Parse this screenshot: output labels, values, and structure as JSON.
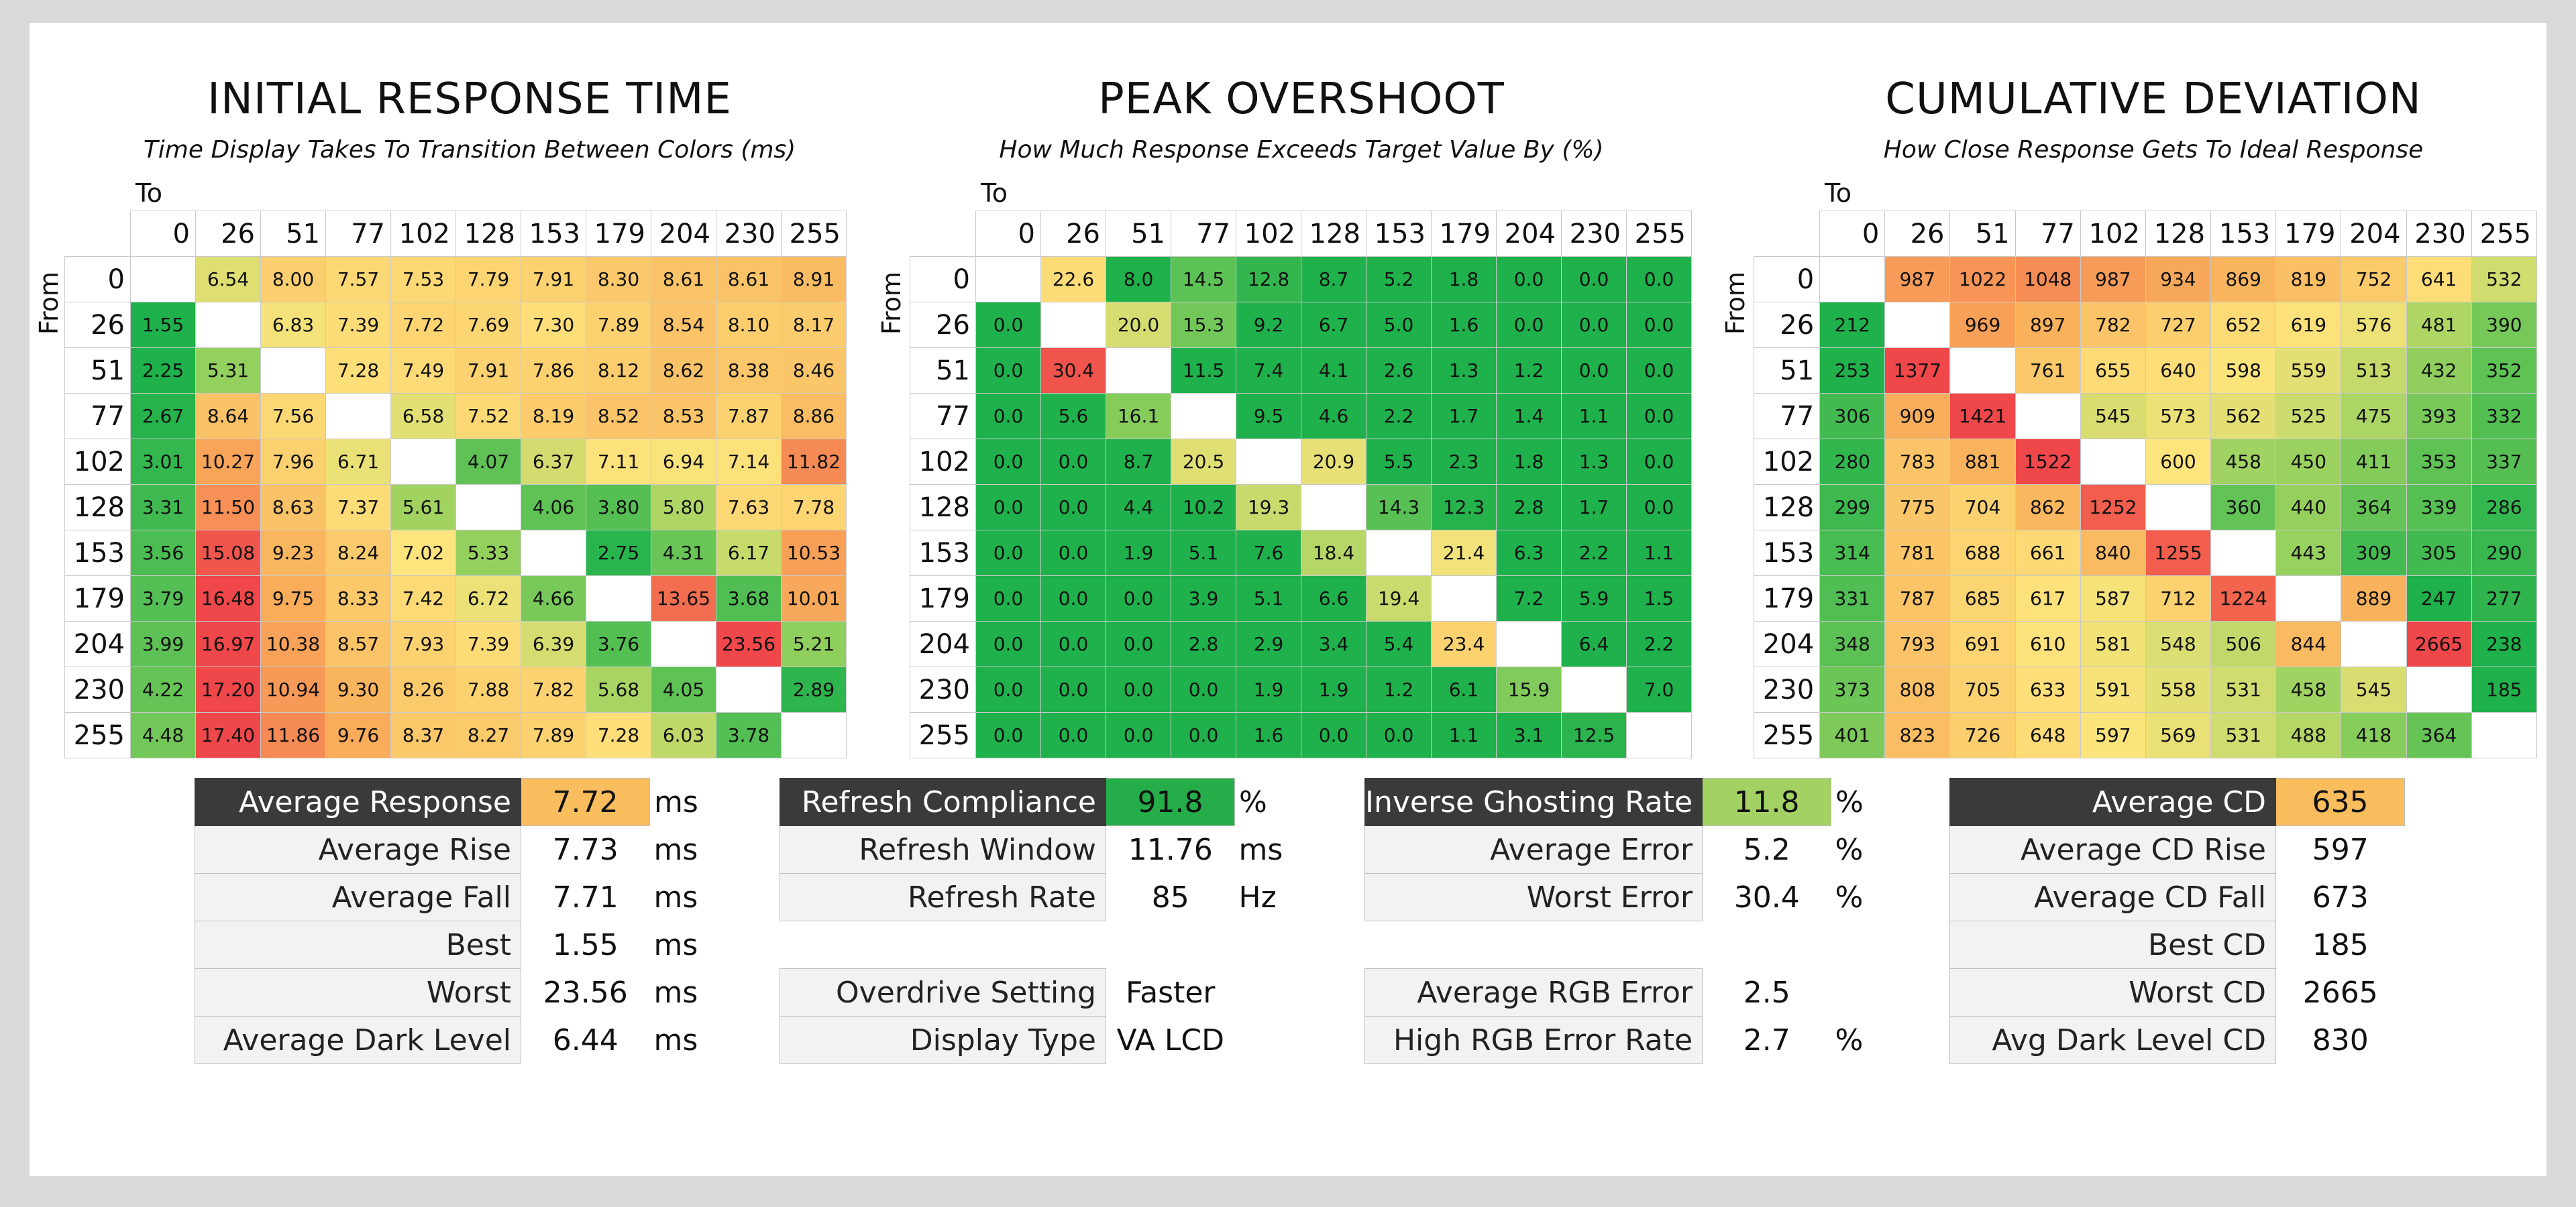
{
  "chart_data": [
    {
      "type": "heatmap",
      "title": "INITIAL RESPONSE TIME",
      "subtitle": "Time Display Takes To Transition Between Colors (ms)",
      "xlabel": "To",
      "ylabel": "From",
      "levels": [
        "0",
        "26",
        "51",
        "77",
        "102",
        "128",
        "153",
        "179",
        "204",
        "230",
        "255"
      ],
      "values": [
        [
          null,
          "6.54",
          "8.00",
          "7.57",
          "7.53",
          "7.79",
          "7.91",
          "8.30",
          "8.61",
          "8.61",
          "8.91"
        ],
        [
          "1.55",
          null,
          "6.83",
          "7.39",
          "7.72",
          "7.69",
          "7.30",
          "7.89",
          "8.54",
          "8.10",
          "8.17"
        ],
        [
          "2.25",
          "5.31",
          null,
          "7.28",
          "7.49",
          "7.91",
          "7.86",
          "8.12",
          "8.62",
          "8.38",
          "8.46"
        ],
        [
          "2.67",
          "8.64",
          "7.56",
          null,
          "6.58",
          "7.52",
          "8.19",
          "8.52",
          "8.53",
          "7.87",
          "8.86"
        ],
        [
          "3.01",
          "10.27",
          "7.96",
          "6.71",
          null,
          "4.07",
          "6.37",
          "7.11",
          "6.94",
          "7.14",
          "11.82"
        ],
        [
          "3.31",
          "11.50",
          "8.63",
          "7.37",
          "5.61",
          null,
          "4.06",
          "3.80",
          "5.80",
          "7.63",
          "7.78"
        ],
        [
          "3.56",
          "15.08",
          "9.23",
          "8.24",
          "7.02",
          "5.33",
          null,
          "2.75",
          "4.31",
          "6.17",
          "10.53"
        ],
        [
          "3.79",
          "16.48",
          "9.75",
          "8.33",
          "7.42",
          "6.72",
          "4.66",
          null,
          "13.65",
          "3.68",
          "10.01"
        ],
        [
          "3.99",
          "16.97",
          "10.38",
          "8.57",
          "7.93",
          "7.39",
          "6.39",
          "3.76",
          null,
          "23.56",
          "5.21"
        ],
        [
          "4.22",
          "17.20",
          "10.94",
          "9.30",
          "8.26",
          "7.88",
          "7.82",
          "5.68",
          "4.05",
          null,
          "2.89"
        ],
        [
          "4.48",
          "17.40",
          "11.86",
          "9.76",
          "8.37",
          "8.27",
          "7.89",
          "7.28",
          "6.03",
          "3.78",
          null
        ]
      ]
    },
    {
      "type": "heatmap",
      "title": "PEAK OVERSHOOT",
      "subtitle": "How Much Response Exceeds Target Value By (%)",
      "xlabel": "To",
      "ylabel": "From",
      "levels": [
        "0",
        "26",
        "51",
        "77",
        "102",
        "128",
        "153",
        "179",
        "204",
        "230",
        "255"
      ],
      "values": [
        [
          null,
          "22.6",
          "8.0",
          "14.5",
          "12.8",
          "8.7",
          "5.2",
          "1.8",
          "0.0",
          "0.0",
          "0.0"
        ],
        [
          "0.0",
          null,
          "20.0",
          "15.3",
          "9.2",
          "6.7",
          "5.0",
          "1.6",
          "0.0",
          "0.0",
          "0.0"
        ],
        [
          "0.0",
          "30.4",
          null,
          "11.5",
          "7.4",
          "4.1",
          "2.6",
          "1.3",
          "1.2",
          "0.0",
          "0.0"
        ],
        [
          "0.0",
          "5.6",
          "16.1",
          null,
          "9.5",
          "4.6",
          "2.2",
          "1.7",
          "1.4",
          "1.1",
          "0.0"
        ],
        [
          "0.0",
          "0.0",
          "8.7",
          "20.5",
          null,
          "20.9",
          "5.5",
          "2.3",
          "1.8",
          "1.3",
          "0.0"
        ],
        [
          "0.0",
          "0.0",
          "4.4",
          "10.2",
          "19.3",
          null,
          "14.3",
          "12.3",
          "2.8",
          "1.7",
          "0.0"
        ],
        [
          "0.0",
          "0.0",
          "1.9",
          "5.1",
          "7.6",
          "18.4",
          null,
          "21.4",
          "6.3",
          "2.2",
          "1.1"
        ],
        [
          "0.0",
          "0.0",
          "0.0",
          "3.9",
          "5.1",
          "6.6",
          "19.4",
          null,
          "7.2",
          "5.9",
          "1.5"
        ],
        [
          "0.0",
          "0.0",
          "0.0",
          "2.8",
          "2.9",
          "3.4",
          "5.4",
          "23.4",
          null,
          "6.4",
          "2.2"
        ],
        [
          "0.0",
          "0.0",
          "0.0",
          "0.0",
          "1.9",
          "1.9",
          "1.2",
          "6.1",
          "15.9",
          null,
          "7.0"
        ],
        [
          "0.0",
          "0.0",
          "0.0",
          "0.0",
          "1.6",
          "0.0",
          "0.0",
          "1.1",
          "3.1",
          "12.5",
          null
        ]
      ]
    },
    {
      "type": "heatmap",
      "title": "CUMULATIVE DEVIATION",
      "subtitle": "How Close Response Gets To Ideal Response",
      "xlabel": "To",
      "ylabel": "From",
      "levels": [
        "0",
        "26",
        "51",
        "77",
        "102",
        "128",
        "153",
        "179",
        "204",
        "230",
        "255"
      ],
      "values": [
        [
          null,
          "987",
          "1022",
          "1048",
          "987",
          "934",
          "869",
          "819",
          "752",
          "641",
          "532"
        ],
        [
          "212",
          null,
          "969",
          "897",
          "782",
          "727",
          "652",
          "619",
          "576",
          "481",
          "390"
        ],
        [
          "253",
          "1377",
          null,
          "761",
          "655",
          "640",
          "598",
          "559",
          "513",
          "432",
          "352"
        ],
        [
          "306",
          "909",
          "1421",
          null,
          "545",
          "573",
          "562",
          "525",
          "475",
          "393",
          "332"
        ],
        [
          "280",
          "783",
          "881",
          "1522",
          null,
          "600",
          "458",
          "450",
          "411",
          "353",
          "337"
        ],
        [
          "299",
          "775",
          "704",
          "862",
          "1252",
          null,
          "360",
          "440",
          "364",
          "339",
          "286"
        ],
        [
          "314",
          "781",
          "688",
          "661",
          "840",
          "1255",
          null,
          "443",
          "309",
          "305",
          "290"
        ],
        [
          "331",
          "787",
          "685",
          "617",
          "587",
          "712",
          "1224",
          null,
          "889",
          "247",
          "277"
        ],
        [
          "348",
          "793",
          "691",
          "610",
          "581",
          "548",
          "506",
          "844",
          null,
          "2665",
          "238"
        ],
        [
          "373",
          "808",
          "705",
          "633",
          "591",
          "558",
          "531",
          "458",
          "545",
          null,
          "185"
        ],
        [
          "401",
          "823",
          "726",
          "648",
          "597",
          "569",
          "531",
          "488",
          "418",
          "364",
          null
        ]
      ]
    }
  ],
  "stats": {
    "response": [
      {
        "label": "Average Response",
        "value": "7.72",
        "unit": "ms",
        "header": true,
        "color": "#f9bd5e"
      },
      {
        "label": "Average Rise",
        "value": "7.73",
        "unit": "ms"
      },
      {
        "label": "Average Fall",
        "value": "7.71",
        "unit": "ms"
      },
      {
        "label": "Best",
        "value": "1.55",
        "unit": "ms"
      },
      {
        "label": "Worst",
        "value": "23.56",
        "unit": "ms"
      },
      {
        "label": "Average Dark Level",
        "value": "6.44",
        "unit": "ms"
      }
    ],
    "refresh": [
      {
        "label": "Refresh Compliance",
        "value": "91.8",
        "unit": "%",
        "header": true,
        "color": "#25ad4a"
      },
      {
        "label": "Refresh Window",
        "value": "11.76",
        "unit": "ms"
      },
      {
        "label": "Refresh Rate",
        "value": "85",
        "unit": "Hz"
      },
      {
        "gap": true
      },
      {
        "label": "Overdrive Setting",
        "value": "Faster",
        "unit": ""
      },
      {
        "label": "Display Type",
        "value": "VA LCD",
        "unit": ""
      }
    ],
    "error": [
      {
        "label": "Inverse Ghosting Rate",
        "value": "11.8",
        "unit": "%",
        "header": true,
        "color": "#a3d163"
      },
      {
        "label": "Average Error",
        "value": "5.2",
        "unit": "%"
      },
      {
        "label": "Worst Error",
        "value": "30.4",
        "unit": "%"
      },
      {
        "gap": true
      },
      {
        "label": "Average RGB Error",
        "value": "2.5",
        "unit": ""
      },
      {
        "label": "High RGB Error Rate",
        "value": "2.7",
        "unit": "%"
      }
    ],
    "cd": [
      {
        "label": "Average CD",
        "value": "635",
        "unit": "",
        "header": true,
        "color": "#f9bd5e"
      },
      {
        "label": "Average CD Rise",
        "value": "597",
        "unit": ""
      },
      {
        "label": "Average CD Fall",
        "value": "673",
        "unit": ""
      },
      {
        "label": "Best CD",
        "value": "185",
        "unit": ""
      },
      {
        "label": "Worst CD",
        "value": "2665",
        "unit": ""
      },
      {
        "label": "Avg Dark Level CD",
        "value": "830",
        "unit": ""
      }
    ]
  },
  "colors": {
    "green": "#1fb14b",
    "yellow": "#fde47c",
    "orange": "#f9b05b",
    "red": "#f0474a",
    "header_dark": "#3a3a3a"
  }
}
